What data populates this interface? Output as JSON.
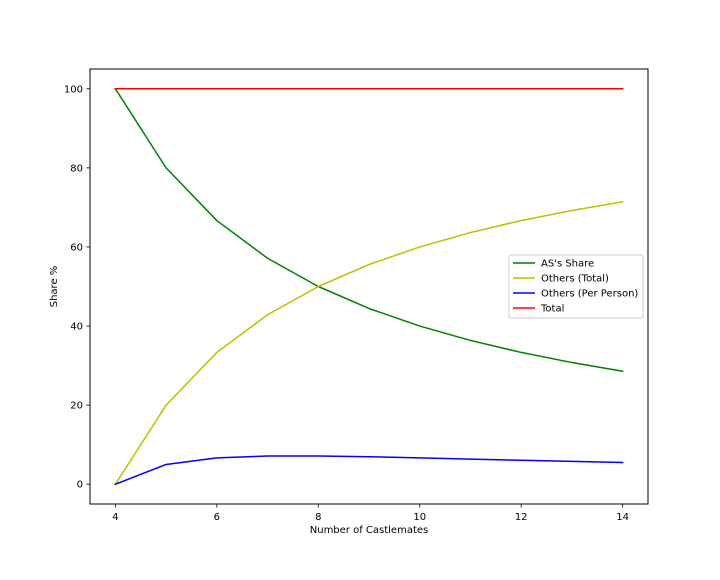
{
  "chart_data": {
    "type": "line",
    "title": "",
    "xlabel": "Number of Castlemates",
    "ylabel": "Share %",
    "xlim": [
      3.5,
      14.5
    ],
    "ylim": [
      -5,
      105
    ],
    "xticks": [
      4,
      6,
      8,
      10,
      12,
      14
    ],
    "yticks": [
      0,
      20,
      40,
      60,
      80,
      100
    ],
    "grid": false,
    "legend_position": "center-right",
    "x": [
      4,
      5,
      6,
      7,
      8,
      9,
      10,
      11,
      12,
      13,
      14
    ],
    "series": [
      {
        "name": "AS's Share",
        "color": "#008000",
        "values": [
          100,
          80,
          66.67,
          57.14,
          50,
          44.44,
          40,
          36.36,
          33.33,
          30.77,
          28.57
        ]
      },
      {
        "name": "Others (Total)",
        "color": "#bfbf00",
        "values": [
          0,
          20,
          33.33,
          42.86,
          50,
          55.56,
          60,
          63.64,
          66.67,
          69.23,
          71.43
        ]
      },
      {
        "name": "Others (Per Person)",
        "color": "#0000ff",
        "values": [
          0,
          5,
          6.67,
          7.14,
          7.14,
          6.94,
          6.67,
          6.36,
          6.06,
          5.77,
          5.49
        ]
      },
      {
        "name": "Total",
        "color": "#ff0000",
        "values": [
          100,
          100,
          100,
          100,
          100,
          100,
          100,
          100,
          100,
          100,
          100
        ]
      }
    ]
  }
}
